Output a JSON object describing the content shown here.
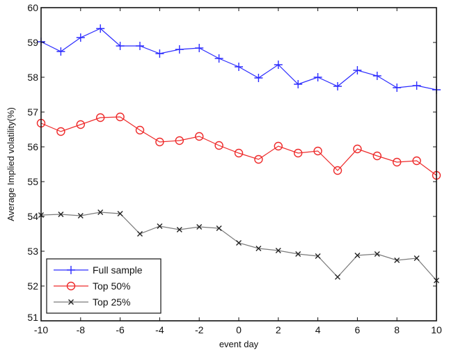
{
  "chart_data": {
    "type": "line",
    "title": "",
    "xlabel": "event day",
    "ylabel": "Average Implied volatility(%)",
    "xlim": [
      -10,
      10
    ],
    "ylim": [
      51,
      60
    ],
    "xticks": [
      -10,
      -8,
      -6,
      -4,
      -2,
      0,
      2,
      4,
      6,
      8,
      10
    ],
    "yticks": [
      51,
      52,
      53,
      54,
      55,
      56,
      57,
      58,
      59,
      60
    ],
    "grid": false,
    "legend_position": "bottom-left",
    "x": [
      -10,
      -9,
      -8,
      -7,
      -6,
      -5,
      -4,
      -3,
      -2,
      -1,
      0,
      1,
      2,
      3,
      4,
      5,
      6,
      7,
      8,
      9,
      10
    ],
    "series": [
      {
        "name": "Full sample",
        "color": "#2b2bff",
        "marker": "plus",
        "values": [
          59.02,
          58.74,
          59.14,
          59.4,
          58.9,
          58.9,
          58.68,
          58.8,
          58.84,
          58.54,
          58.3,
          57.98,
          58.36,
          57.8,
          58.0,
          57.74,
          58.2,
          58.04,
          57.7,
          57.76,
          57.64
        ]
      },
      {
        "name": "Top 50%",
        "color": "#ee2a2a",
        "marker": "circle",
        "values": [
          56.68,
          56.44,
          56.64,
          56.84,
          56.86,
          56.48,
          56.14,
          56.18,
          56.3,
          56.04,
          55.82,
          55.64,
          56.02,
          55.82,
          55.88,
          55.32,
          55.94,
          55.74,
          55.56,
          55.6,
          55.18
        ]
      },
      {
        "name": "Top 25%",
        "color": "#7a7a7a",
        "marker": "x",
        "values": [
          54.04,
          54.06,
          54.02,
          54.12,
          54.08,
          53.5,
          53.72,
          53.62,
          53.7,
          53.66,
          53.24,
          53.08,
          53.02,
          52.92,
          52.86,
          52.26,
          52.88,
          52.92,
          52.74,
          52.8,
          52.16
        ]
      }
    ]
  }
}
